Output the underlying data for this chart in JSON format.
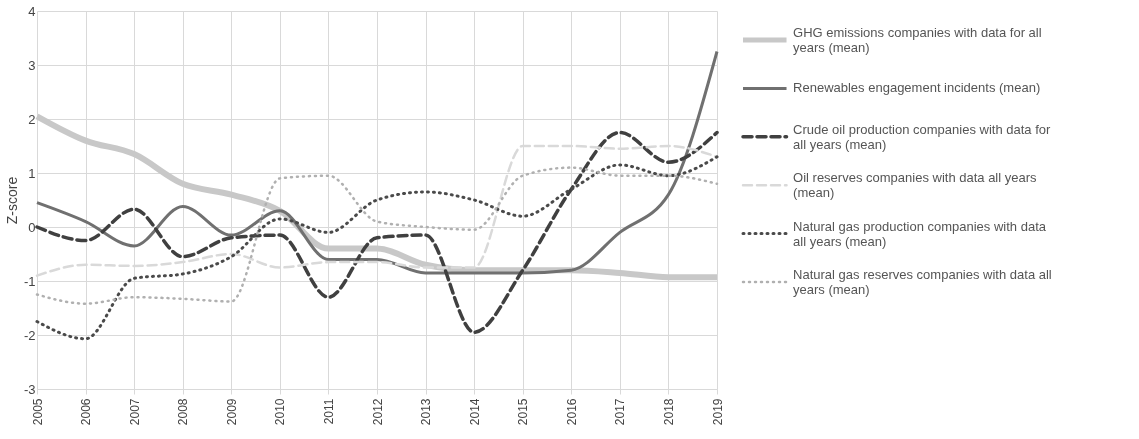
{
  "chart_data": {
    "type": "line",
    "ylabel": "Z-score",
    "x": [
      2005,
      2006,
      2007,
      2008,
      2009,
      2010,
      2011,
      2012,
      2013,
      2014,
      2015,
      2016,
      2017,
      2018,
      2019
    ],
    "xlim": [
      2005,
      2019
    ],
    "xticks": [
      2005,
      2006,
      2007,
      2008,
      2009,
      2010,
      2011,
      2012,
      2013,
      2014,
      2015,
      2016,
      2017,
      2018,
      2019
    ],
    "ylim": [
      -3,
      4
    ],
    "yticks": [
      -3,
      -2,
      -1,
      0,
      1,
      2,
      3,
      4
    ],
    "grid": true,
    "legend": "right",
    "marker": "none",
    "series": [
      {
        "name": "GHG emissions companies with data for all years (mean)",
        "color": "#c8c8c8",
        "line_style": "solid",
        "values": [
          2.05,
          1.6,
          1.35,
          0.8,
          0.6,
          0.3,
          -0.4,
          -0.4,
          -0.7,
          -0.8,
          -0.8,
          -0.8,
          -0.85,
          -0.93,
          -0.93
        ]
      },
      {
        "name": "Renewables engagement incidents (mean)",
        "color": "#707070",
        "line_style": "solid",
        "values": [
          0.45,
          0.1,
          -0.35,
          0.38,
          -0.15,
          0.3,
          -0.6,
          -0.6,
          -0.85,
          -0.85,
          -0.85,
          -0.8,
          -0.1,
          0.6,
          3.25
        ]
      },
      {
        "name": "Crude oil production companies with data for all years (mean)",
        "color": "#404040",
        "line_style": "dashed",
        "values": [
          0,
          -0.25,
          0.33,
          -0.55,
          -0.2,
          -0.15,
          -1.3,
          -0.2,
          -0.15,
          -1.95,
          -0.8,
          0.7,
          1.75,
          1.2,
          1.75
        ]
      },
      {
        "name": "Oil reserves companies with data all years (mean)",
        "color": "#d9d9d9",
        "line_style": "dashed",
        "values": [
          -0.9,
          -0.7,
          -0.72,
          -0.65,
          -0.5,
          -0.75,
          -0.65,
          -0.65,
          -0.75,
          -0.75,
          1.5,
          1.5,
          1.45,
          1.5,
          1.3
        ]
      },
      {
        "name": "Natural gas production companies with data all years (mean)",
        "color": "#4a4a4a",
        "line_style": "dotted",
        "values": [
          -1.75,
          -2.07,
          -0.95,
          -0.87,
          -0.55,
          0.15,
          -0.1,
          0.5,
          0.65,
          0.5,
          0.2,
          0.7,
          1.15,
          0.95,
          1.3
        ]
      },
      {
        "name": "Natural gas reserves companies with data all years (mean)",
        "color": "#b0b0b0",
        "line_style": "dotted",
        "values": [
          -1.25,
          -1.42,
          -1.3,
          -1.33,
          -1.38,
          0.9,
          0.95,
          0.1,
          0.0,
          -0.05,
          0.95,
          1.1,
          0.95,
          0.95,
          0.8
        ]
      }
    ]
  }
}
